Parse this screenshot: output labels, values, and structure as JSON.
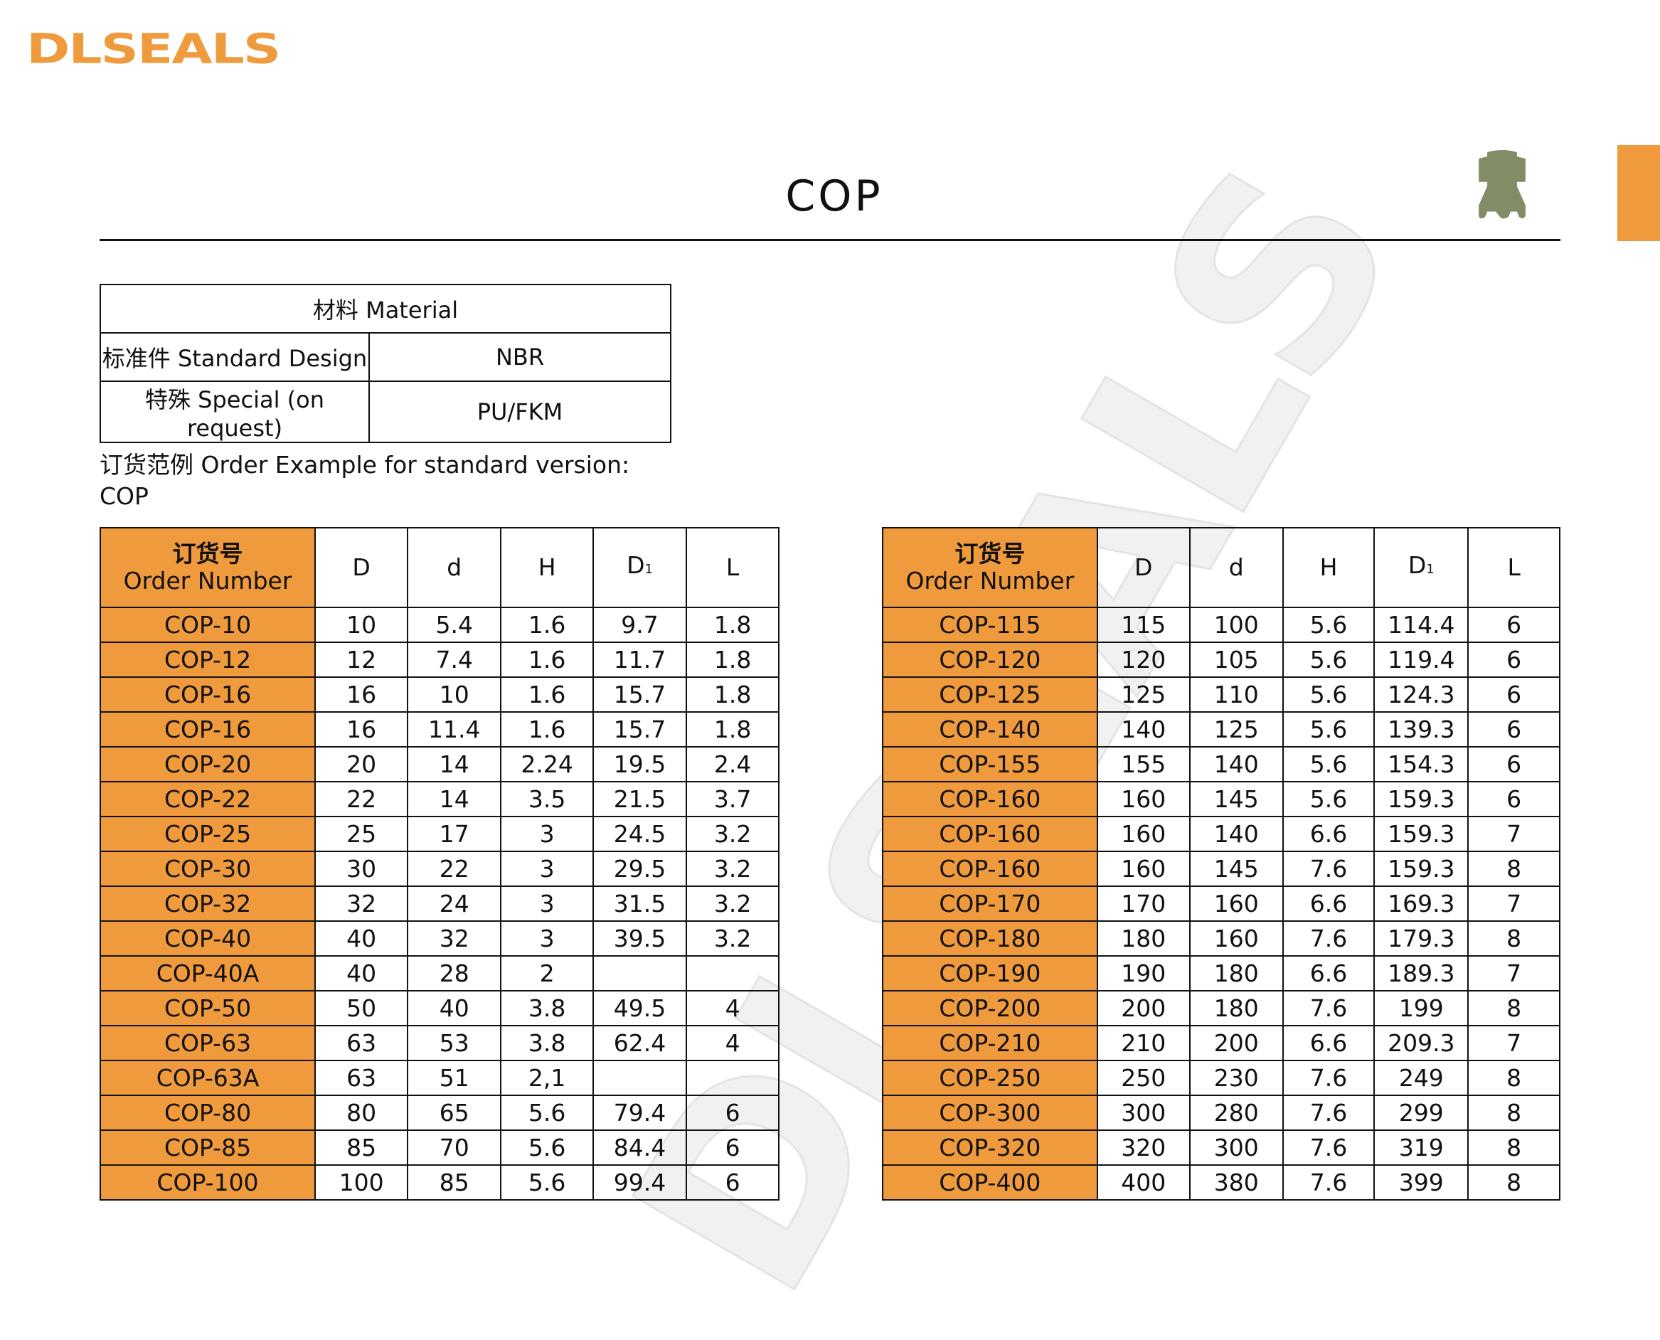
{
  "brand": {
    "logo_text": "DLSEALS",
    "accent_color": "#EF9A3C",
    "icon_color": "#828C66",
    "watermark_text": "DLSEALS"
  },
  "title": "COP",
  "profile_icon": "seal-profile-icon",
  "material": {
    "header": "材料 Material",
    "rows": [
      {
        "label": "标准件 Standard Design",
        "value": "NBR"
      },
      {
        "label": "特殊 Special (on request)",
        "value": "PU/FKM"
      }
    ]
  },
  "order_example": {
    "line1": "订货范例 Order Example for standard version:",
    "line2": "COP"
  },
  "columns": {
    "order_cn": "订货号",
    "order_en": "Order Number",
    "D": "D",
    "d": "d",
    "H": "H",
    "D1": "D",
    "D1_sub": "1",
    "L": "L"
  },
  "left_table": [
    [
      "COP-10",
      "10",
      "5.4",
      "1.6",
      "9.7",
      "1.8"
    ],
    [
      "COP-12",
      "12",
      "7.4",
      "1.6",
      "11.7",
      "1.8"
    ],
    [
      "COP-16",
      "16",
      "10",
      "1.6",
      "15.7",
      "1.8"
    ],
    [
      "COP-16",
      "16",
      "11.4",
      "1.6",
      "15.7",
      "1.8"
    ],
    [
      "COP-20",
      "20",
      "14",
      "2.24",
      "19.5",
      "2.4"
    ],
    [
      "COP-22",
      "22",
      "14",
      "3.5",
      "21.5",
      "3.7"
    ],
    [
      "COP-25",
      "25",
      "17",
      "3",
      "24.5",
      "3.2"
    ],
    [
      "COP-30",
      "30",
      "22",
      "3",
      "29.5",
      "3.2"
    ],
    [
      "COP-32",
      "32",
      "24",
      "3",
      "31.5",
      "3.2"
    ],
    [
      "COP-40",
      "40",
      "32",
      "3",
      "39.5",
      "3.2"
    ],
    [
      "COP-40A",
      "40",
      "28",
      "2",
      "",
      ""
    ],
    [
      "COP-50",
      "50",
      "40",
      "3.8",
      "49.5",
      "4"
    ],
    [
      "COP-63",
      "63",
      "53",
      "3.8",
      "62.4",
      "4"
    ],
    [
      "COP-63A",
      "63",
      "51",
      "2,1",
      "",
      ""
    ],
    [
      "COP-80",
      "80",
      "65",
      "5.6",
      "79.4",
      "6"
    ],
    [
      "COP-85",
      "85",
      "70",
      "5.6",
      "84.4",
      "6"
    ],
    [
      "COP-100",
      "100",
      "85",
      "5.6",
      "99.4",
      "6"
    ]
  ],
  "right_table": [
    [
      "COP-115",
      "115",
      "100",
      "5.6",
      "114.4",
      "6"
    ],
    [
      "COP-120",
      "120",
      "105",
      "5.6",
      "119.4",
      "6"
    ],
    [
      "COP-125",
      "125",
      "110",
      "5.6",
      "124.3",
      "6"
    ],
    [
      "COP-140",
      "140",
      "125",
      "5.6",
      "139.3",
      "6"
    ],
    [
      "COP-155",
      "155",
      "140",
      "5.6",
      "154.3",
      "6"
    ],
    [
      "COP-160",
      "160",
      "145",
      "5.6",
      "159.3",
      "6"
    ],
    [
      "COP-160",
      "160",
      "140",
      "6.6",
      "159.3",
      "7"
    ],
    [
      "COP-160",
      "160",
      "145",
      "7.6",
      "159.3",
      "8"
    ],
    [
      "COP-170",
      "170",
      "160",
      "6.6",
      "169.3",
      "7"
    ],
    [
      "COP-180",
      "180",
      "160",
      "7.6",
      "179.3",
      "8"
    ],
    [
      "COP-190",
      "190",
      "180",
      "6.6",
      "189.3",
      "7"
    ],
    [
      "COP-200",
      "200",
      "180",
      "7.6",
      "199",
      "8"
    ],
    [
      "COP-210",
      "210",
      "200",
      "6.6",
      "209.3",
      "7"
    ],
    [
      "COP-250",
      "250",
      "230",
      "7.6",
      "249",
      "8"
    ],
    [
      "COP-300",
      "300",
      "280",
      "7.6",
      "299",
      "8"
    ],
    [
      "COP-320",
      "320",
      "300",
      "7.6",
      "319",
      "8"
    ],
    [
      "COP-400",
      "400",
      "380",
      "7.6",
      "399",
      "8"
    ]
  ]
}
